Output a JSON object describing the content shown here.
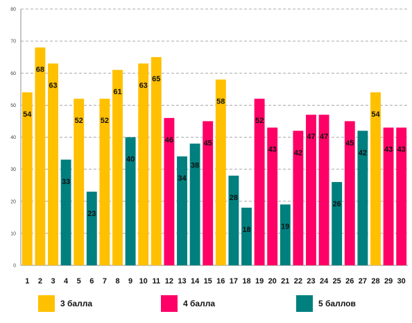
{
  "chart_data": {
    "type": "bar",
    "categories": [
      "1",
      "2",
      "3",
      "4",
      "5",
      "6",
      "7",
      "8",
      "9",
      "10",
      "11",
      "12",
      "13",
      "14",
      "15",
      "16",
      "17",
      "18",
      "19",
      "20",
      "21",
      "22",
      "23",
      "24",
      "25",
      "26",
      "27",
      "28",
      "29",
      "30"
    ],
    "values": [
      54,
      68,
      63,
      33,
      52,
      23,
      52,
      61,
      40,
      63,
      65,
      46,
      34,
      38,
      45,
      58,
      28,
      18,
      52,
      43,
      19,
      42,
      47,
      47,
      26,
      45,
      42,
      54,
      43,
      43
    ],
    "groups": [
      "3 балла",
      "3 балла",
      "3 балла",
      "5 баллов",
      "3 балла",
      "5 баллов",
      "3 балла",
      "3 балла",
      "5 баллов",
      "3 балла",
      "3 балла",
      "4 балла",
      "5 баллов",
      "5 баллов",
      "4 балла",
      "3 балла",
      "5 баллов",
      "5 баллов",
      "4 балла",
      "4 балла",
      "5 баллов",
      "4 балла",
      "4 балла",
      "4 балла",
      "5 баллов",
      "4 балла",
      "5 баллов",
      "3 балла",
      "4 балла",
      "4 балла"
    ],
    "legend": [
      {
        "name": "3 балла",
        "color": "#FFC000"
      },
      {
        "name": "4 балла",
        "color": "#FF0066"
      },
      {
        "name": "5 баллов",
        "color": "#007F7F"
      }
    ],
    "ylim": [
      0,
      80
    ],
    "yticks": [
      "0",
      "10",
      "20",
      "30",
      "40",
      "50",
      "60",
      "70",
      "80"
    ],
    "grid": true,
    "legend_position": "bottom"
  }
}
